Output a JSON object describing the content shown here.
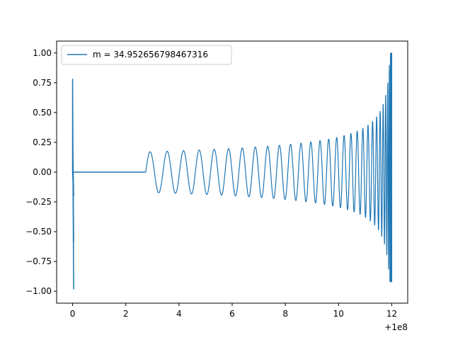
{
  "chart_data": {
    "type": "line",
    "title": "",
    "xlabel": "",
    "ylabel": "",
    "x_offset_label": "+1e8",
    "xlim": [
      -0.6,
      12.6
    ],
    "ylim": [
      -1.1,
      1.1
    ],
    "x_ticks": [
      0,
      2,
      4,
      6,
      8,
      10,
      12
    ],
    "x_tick_labels": [
      "0",
      "2",
      "4",
      "6",
      "8",
      "10",
      "12"
    ],
    "y_ticks": [
      -1.0,
      -0.75,
      -0.5,
      -0.25,
      0.0,
      0.25,
      0.5,
      0.75,
      1.0
    ],
    "y_tick_labels": [
      "−1.00",
      "−0.75",
      "−0.50",
      "−0.25",
      "0.00",
      "0.25",
      "0.50",
      "0.75",
      "1.00"
    ],
    "grid": false,
    "legend_position": "top-left",
    "color": "#1f77b4",
    "series": [
      {
        "name": "m = 34.952656798467316",
        "description": "chirp waveform",
        "segments": [
          {
            "kind": "spike",
            "x": [
              0.0,
              0.05
            ],
            "y_min": -0.98,
            "y_max": 0.78
          },
          {
            "kind": "flat",
            "x": [
              0.05,
              2.75
            ],
            "y": 0.0
          },
          {
            "kind": "chirp",
            "x": [
              2.75,
              12.0
            ],
            "amplitude_start": 0.17,
            "amplitude_end": 1.0,
            "y_min_end": -0.92
          }
        ]
      }
    ]
  }
}
